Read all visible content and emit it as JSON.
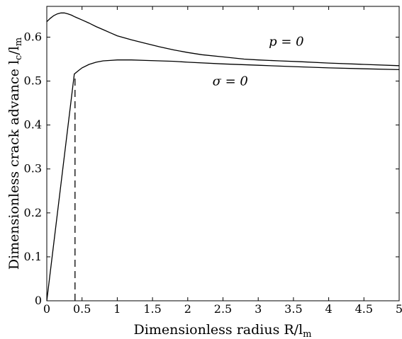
{
  "chart_data": {
    "type": "line",
    "xlabel": "Dimensionless radius R/l",
    "xlabel_sub": "m",
    "ylabel": "Dimensionless crack advance l",
    "ylabel_sub_c": "c",
    "ylabel_slash": "/l",
    "ylabel_sub_m": "m",
    "xlim": [
      0,
      5
    ],
    "ylim": [
      0,
      0.67
    ],
    "x_ticks": [
      0,
      0.5,
      1,
      1.5,
      2,
      2.5,
      3,
      3.5,
      4,
      4.5,
      5
    ],
    "x_tick_labels": [
      "0",
      "0.5",
      "1",
      "1.5",
      "2",
      "2.5",
      "3",
      "3.5",
      "4",
      "4.5",
      "5"
    ],
    "y_ticks": [
      0,
      0.1,
      0.2,
      0.3,
      0.4,
      0.5,
      0.6
    ],
    "y_tick_labels": [
      "0",
      "0.1",
      "0.2",
      "0.3",
      "0.4",
      "0.5",
      "0.6"
    ],
    "grid": false,
    "series": [
      {
        "name": "p = 0",
        "style": "solid",
        "x": [
          0,
          0.05,
          0.1,
          0.15,
          0.2,
          0.25,
          0.3,
          0.35,
          0.4,
          0.5,
          0.6,
          0.7,
          0.8,
          0.9,
          1.0,
          1.2,
          1.4,
          1.6,
          1.8,
          2.0,
          2.2,
          2.5,
          2.8,
          3.0,
          3.3,
          3.6,
          4.0,
          4.5,
          5.0
        ],
        "y": [
          0.635,
          0.643,
          0.649,
          0.653,
          0.655,
          0.655,
          0.653,
          0.65,
          0.646,
          0.639,
          0.632,
          0.624,
          0.617,
          0.61,
          0.603,
          0.594,
          0.586,
          0.578,
          0.571,
          0.565,
          0.56,
          0.555,
          0.55,
          0.548,
          0.546,
          0.544,
          0.541,
          0.538,
          0.535
        ]
      },
      {
        "name": "σ = 0",
        "style": "solid",
        "x": [
          0,
          0.39,
          0.45,
          0.5,
          0.6,
          0.7,
          0.8,
          0.9,
          1.0,
          1.1,
          1.2,
          1.4,
          1.6,
          1.8,
          2.0,
          2.5,
          3.0,
          3.5,
          4.0,
          4.5,
          5.0
        ],
        "y": [
          0,
          0.516,
          0.524,
          0.53,
          0.538,
          0.543,
          0.546,
          0.547,
          0.548,
          0.548,
          0.548,
          0.547,
          0.546,
          0.545,
          0.543,
          0.539,
          0.536,
          0.533,
          0.53,
          0.528,
          0.526
        ]
      },
      {
        "name": "",
        "style": "dashed",
        "x": [
          0.4,
          0.4
        ],
        "y": [
          0,
          0.51
        ]
      }
    ],
    "annotations": [
      {
        "text": "p = 0",
        "x": 3.15,
        "y": 0.59
      },
      {
        "text": "σ = 0",
        "x": 2.35,
        "y": 0.5
      }
    ]
  }
}
